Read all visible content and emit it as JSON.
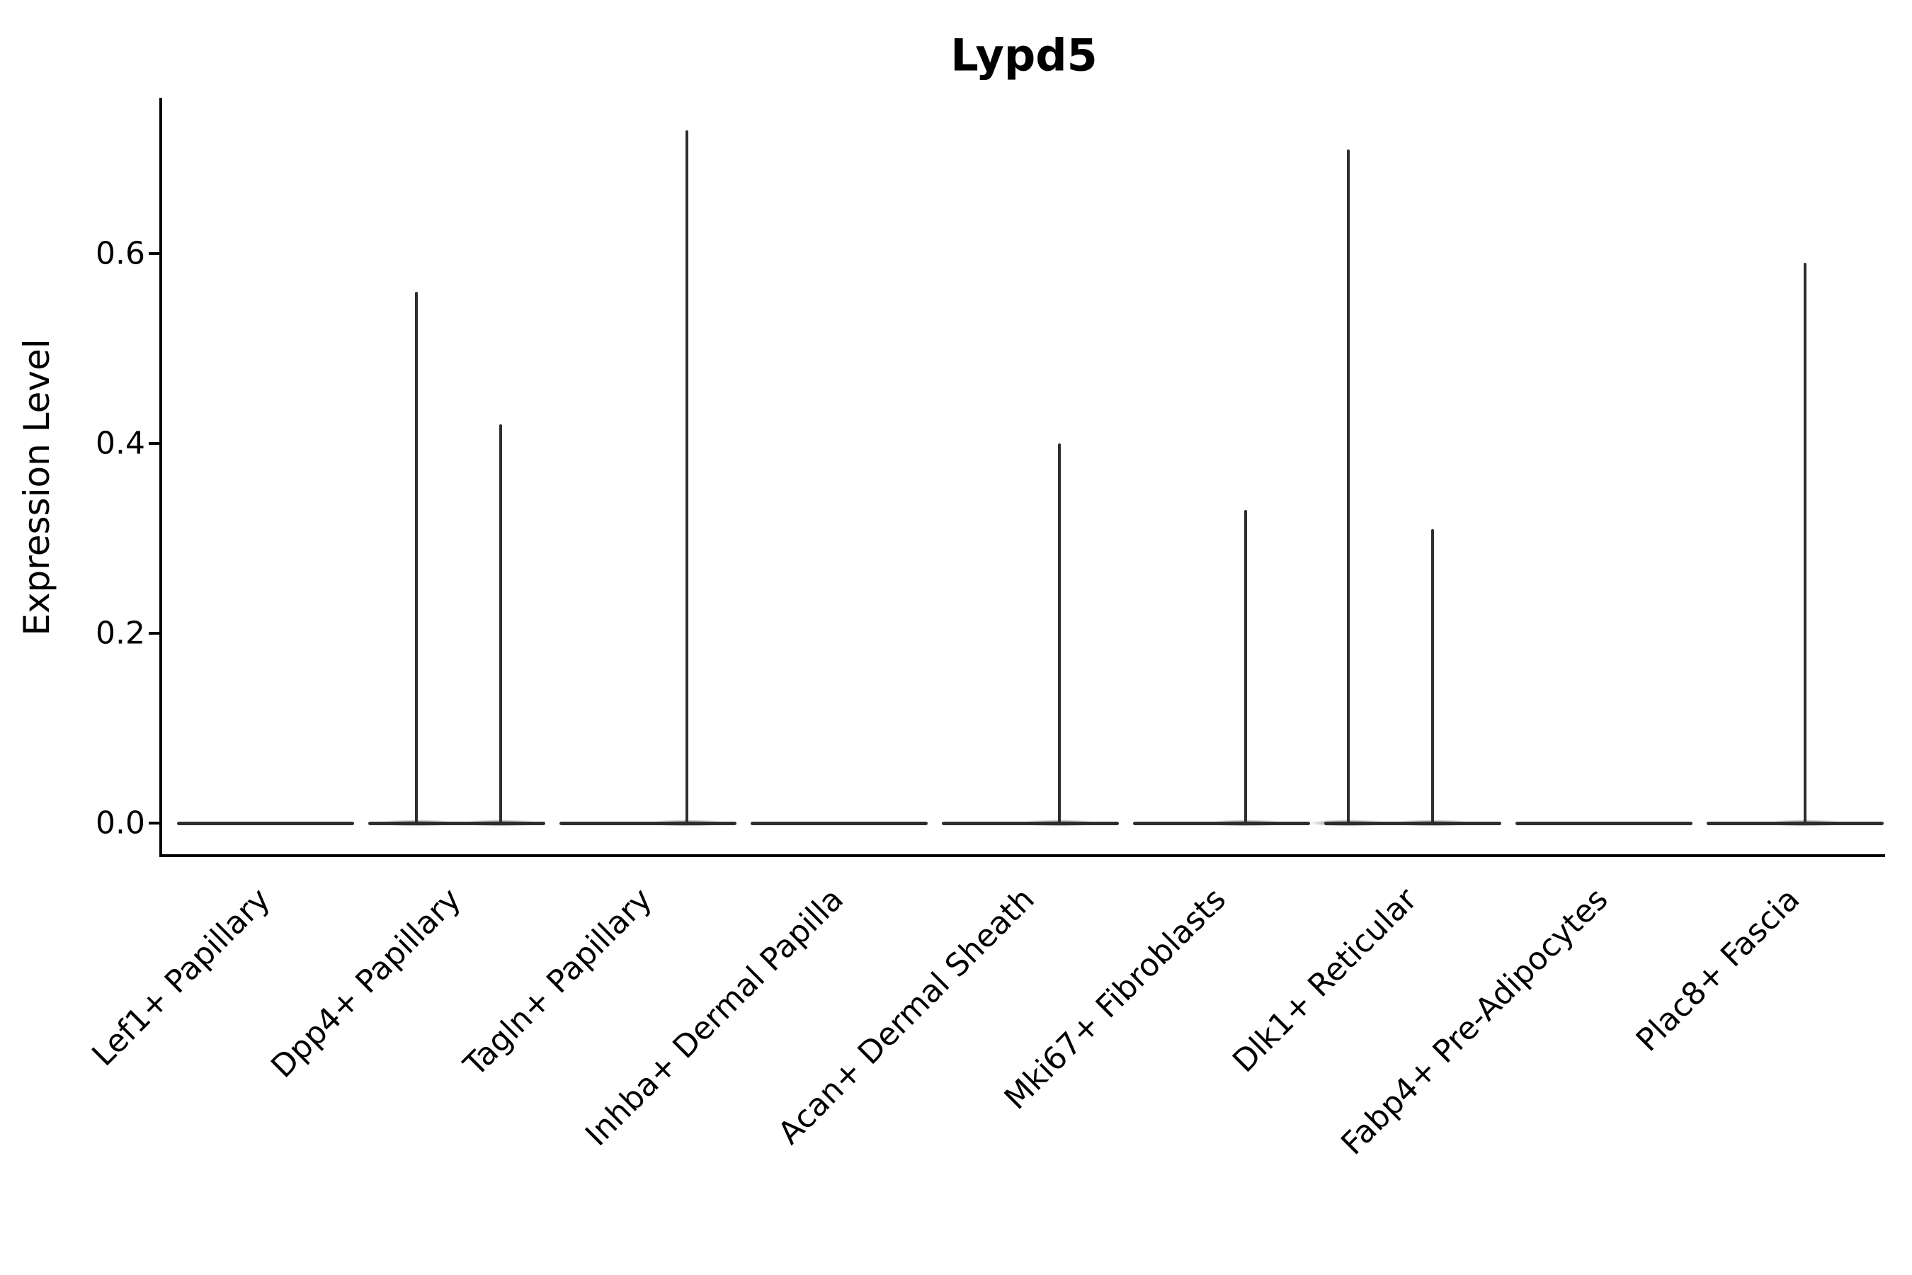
{
  "title": "Lypd5",
  "y_axis": {
    "label": "Expression Level",
    "tick_labels": [
      "0.0",
      "0.2",
      "0.4",
      "0.6"
    ]
  },
  "chart_data": {
    "type": "violin",
    "title": "Lypd5",
    "xlabel": "",
    "ylabel": "Expression Level",
    "ylim": [
      -0.03,
      0.76
    ],
    "yticks": [
      0.0,
      0.2,
      0.4,
      0.6
    ],
    "grid": false,
    "legend": false,
    "stroke_color": "#2e2e2e",
    "axis_color": "#000000",
    "background_color": "#ffffff",
    "categories": [
      "Lef1+ Papillary",
      "Dpp4+ Papillary",
      "Tagln+ Papillary",
      "Inhba+ Dermal Papilla",
      "Acan+ Dermal Sheath",
      "Mki67+ Fibroblasts",
      "Dlk1+ Reticular",
      "Fabp4+ Pre-Adipocytes",
      "Plac8+ Fascia"
    ],
    "violins": [
      {
        "category": "Lef1+ Papillary",
        "baseline_value": 0.0,
        "spikes": []
      },
      {
        "category": "Dpp4+ Papillary",
        "baseline_value": 0.0,
        "spikes": [
          {
            "value": 0.56,
            "x_offset": -57
          },
          {
            "value": 0.42,
            "x_offset": 62
          }
        ]
      },
      {
        "category": "Tagln+ Papillary",
        "baseline_value": 0.0,
        "spikes": [
          {
            "value": 0.73,
            "x_offset": 55
          }
        ]
      },
      {
        "category": "Inhba+ Dermal Papilla",
        "baseline_value": 0.0,
        "spikes": []
      },
      {
        "category": "Acan+ Dermal Sheath",
        "baseline_value": 0.0,
        "spikes": [
          {
            "value": 0.4,
            "x_offset": 41
          }
        ]
      },
      {
        "category": "Mki67+ Fibroblasts",
        "baseline_value": 0.0,
        "spikes": [
          {
            "value": 0.33,
            "x_offset": 34
          }
        ]
      },
      {
        "category": "Dlk1+ Reticular",
        "baseline_value": 0.0,
        "spikes": [
          {
            "value": 0.71,
            "x_offset": -91
          },
          {
            "value": 0.31,
            "x_offset": 28
          }
        ]
      },
      {
        "category": "Fabp4+ Pre-Adipocytes",
        "baseline_value": 0.0,
        "spikes": []
      },
      {
        "category": "Plac8+ Fascia",
        "baseline_value": 0.0,
        "spikes": [
          {
            "value": 0.59,
            "x_offset": 14
          }
        ]
      }
    ]
  }
}
